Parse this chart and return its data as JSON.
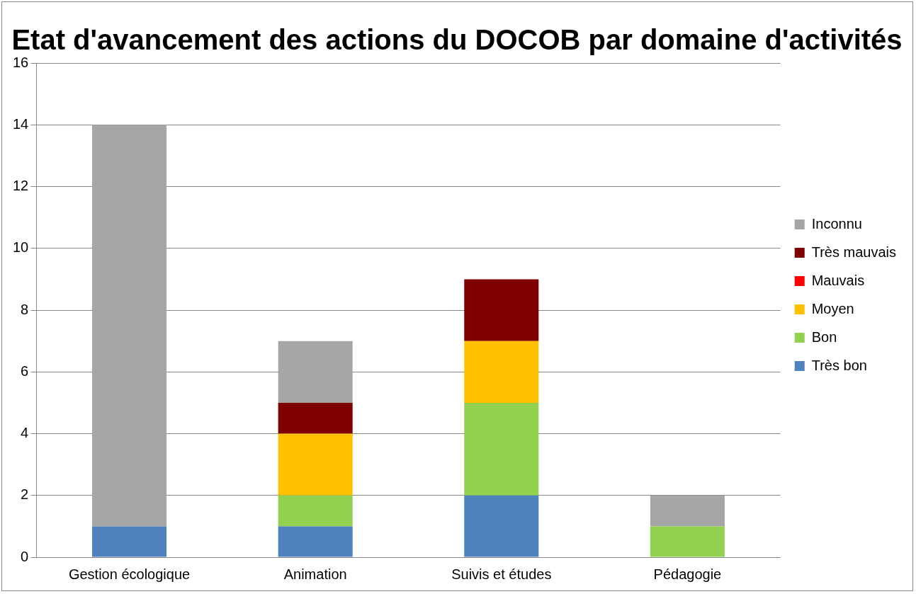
{
  "chart_data": {
    "type": "bar",
    "title": "Etat d'avancement des actions du DOCOB par domaine d'activités",
    "categories": [
      "Gestion écologique",
      "Animation",
      "Suivis et études",
      "Pédagogie"
    ],
    "stacked": true,
    "series": [
      {
        "name": "Très bon",
        "color": "#4f81bd",
        "values": [
          1,
          1,
          2,
          0
        ]
      },
      {
        "name": "Bon",
        "color": "#92d050",
        "values": [
          0,
          1,
          3,
          1
        ]
      },
      {
        "name": "Moyen",
        "color": "#ffc000",
        "values": [
          0,
          2,
          2,
          0
        ]
      },
      {
        "name": "Mauvais",
        "color": "#ff0000",
        "values": [
          0,
          0,
          0,
          0
        ]
      },
      {
        "name": "Très mauvais",
        "color": "#7f0000",
        "values": [
          0,
          1,
          2,
          0
        ]
      },
      {
        "name": "Inconnu",
        "color": "#a6a6a6",
        "values": [
          13,
          2,
          0,
          1
        ]
      }
    ],
    "ylim": [
      0,
      16
    ],
    "yticks": [
      0,
      2,
      4,
      6,
      8,
      10,
      12,
      14,
      16
    ],
    "grid": "y",
    "legend": "right"
  }
}
